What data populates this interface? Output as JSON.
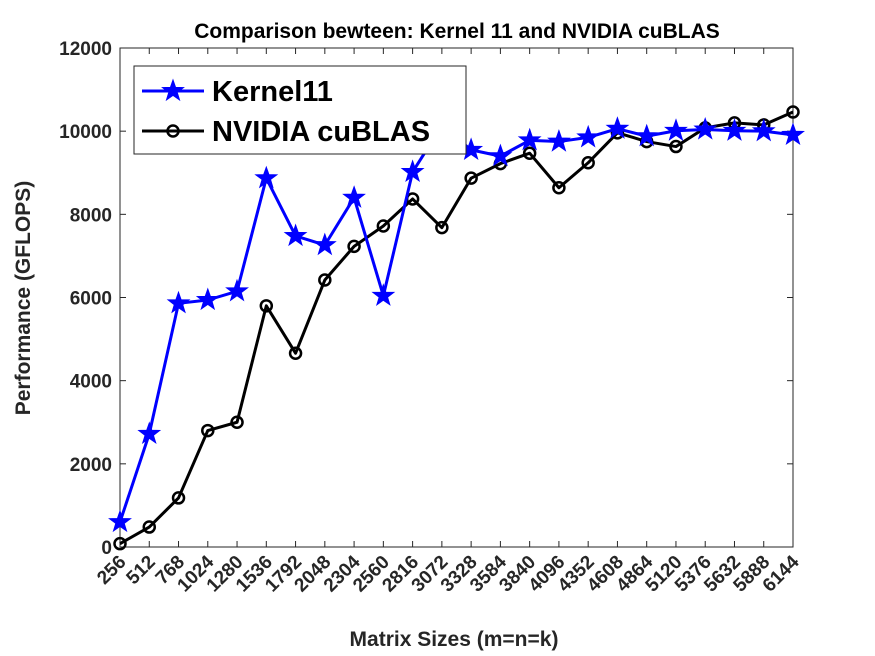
{
  "chart_data": {
    "type": "line",
    "title": "Comparison bewteen: Kernel 11 and NVIDIA cuBLAS",
    "xlabel": "Matrix Sizes (m=n=k)",
    "ylabel": "Performance (GFLOPS)",
    "categories": [
      "256",
      "512",
      "768",
      "1024",
      "1280",
      "1536",
      "1792",
      "2048",
      "2304",
      "2560",
      "2816",
      "3072",
      "3328",
      "3584",
      "3840",
      "4096",
      "4352",
      "4608",
      "4864",
      "5120",
      "5376",
      "5632",
      "5888",
      "6144"
    ],
    "ylim": [
      0,
      12000
    ],
    "yticks": [
      0,
      2000,
      4000,
      6000,
      8000,
      10000,
      12000
    ],
    "ytick_labels": [
      "0",
      "2000",
      "4000",
      "6000",
      "8000",
      "10000",
      "12000"
    ],
    "grid": false,
    "legend_position": "top-left",
    "series": [
      {
        "name": "Kernel11",
        "color": "#0000ff",
        "marker": "star",
        "values": [
          600,
          2720,
          5860,
          5940,
          6150,
          8870,
          7480,
          7260,
          8400,
          6040,
          9020,
          10130,
          9550,
          9400,
          9780,
          9750,
          9850,
          10060,
          9880,
          10010,
          10040,
          10010,
          10000,
          9910
        ]
      },
      {
        "name": "NVIDIA cuBLAS",
        "color": "#000000",
        "marker": "circle",
        "values": [
          80,
          480,
          1180,
          2800,
          3000,
          5800,
          4660,
          6420,
          7230,
          7720,
          8370,
          7680,
          8870,
          9220,
          9470,
          8640,
          9240,
          9960,
          9750,
          9630,
          10080,
          10200,
          10150,
          10460
        ]
      }
    ]
  }
}
